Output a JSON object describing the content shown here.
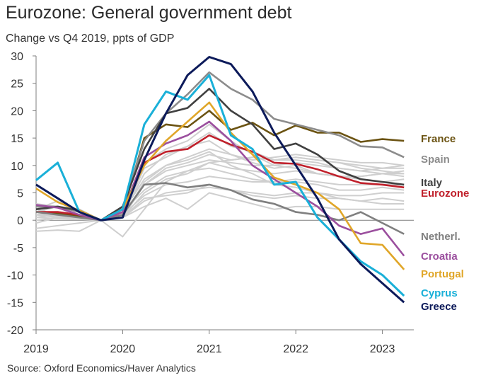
{
  "page": {
    "title": "Eurozone: General government debt",
    "subtitle": "Change vs Q4 2019, ppts of GDP",
    "source": "Source: Oxford Economics/Haver Analytics"
  },
  "chart_data": {
    "type": "line",
    "title": "Eurozone: General government debt",
    "subtitle": "Change vs Q4 2019, ppts of GDP",
    "xlabel": "",
    "ylabel": "",
    "x_ticks": [
      "2019",
      "2020",
      "2021",
      "2022",
      "2023"
    ],
    "y_ticks": [
      -20,
      -15,
      -10,
      -5,
      0,
      5,
      10,
      15,
      20,
      25,
      30
    ],
    "ylim": [
      -20,
      30
    ],
    "x_range": [
      "2019Q1",
      "2023Q2"
    ],
    "grid": false,
    "zero_line": true,
    "legend": "direct labels at right end of lines",
    "x": [
      "2019Q1",
      "2019Q2",
      "2019Q3",
      "2019Q4",
      "2020Q1",
      "2020Q2",
      "2020Q3",
      "2020Q4",
      "2021Q1",
      "2021Q2",
      "2021Q3",
      "2021Q4",
      "2022Q1",
      "2022Q2",
      "2022Q3",
      "2022Q4",
      "2023Q1",
      "2023Q2"
    ],
    "series": [
      {
        "name": "France",
        "color": "#6b5312",
        "values": [
          1.5,
          1.2,
          0.8,
          0,
          1.5,
          15.0,
          17.5,
          17.0,
          20.0,
          16.5,
          17.8,
          15.5,
          17.3,
          16.0,
          16.0,
          14.3,
          14.8,
          14.5
        ]
      },
      {
        "name": "Spain",
        "color": "#8c8c8c",
        "values": [
          2.5,
          2.5,
          1.5,
          0,
          2.0,
          14.5,
          19.5,
          23.0,
          27.0,
          24.0,
          22.0,
          18.5,
          17.5,
          16.5,
          15.5,
          13.5,
          13.3,
          11.5
        ]
      },
      {
        "name": "Italy",
        "color": "#404040",
        "values": [
          2.0,
          2.5,
          1.8,
          0,
          2.5,
          13.0,
          19.5,
          20.5,
          24.0,
          20.0,
          17.5,
          13.0,
          14.0,
          12.0,
          9.0,
          7.5,
          7.0,
          6.5
        ]
      },
      {
        "name": "Eurozone",
        "color": "#c0202b",
        "values": [
          1.5,
          1.5,
          1.0,
          0,
          1.0,
          10.5,
          12.5,
          13.0,
          15.5,
          13.8,
          12.5,
          10.5,
          10.3,
          9.3,
          8.0,
          6.8,
          6.5,
          6.0
        ]
      },
      {
        "name": "Netherl.",
        "color": "#7f7f7f",
        "values": [
          1.5,
          1.0,
          0.5,
          0,
          1.0,
          6.5,
          6.8,
          6.0,
          6.5,
          5.5,
          3.8,
          3.0,
          1.5,
          1.0,
          0.0,
          1.5,
          -0.5,
          -2.5
        ]
      },
      {
        "name": "Croatia",
        "color": "#9b4f9e",
        "values": [
          2.8,
          2.3,
          1.0,
          0,
          1.5,
          11.5,
          14.0,
          15.5,
          18.0,
          14.5,
          10.0,
          7.5,
          5.0,
          2.5,
          -1.0,
          -2.5,
          -1.5,
          -6.5
        ]
      },
      {
        "name": "Portugal",
        "color": "#e0a628",
        "values": [
          5.8,
          3.3,
          1.8,
          0,
          2.0,
          10.0,
          14.5,
          18.0,
          21.5,
          16.0,
          12.0,
          7.8,
          6.5,
          5.0,
          2.0,
          -4.2,
          -4.5,
          -9.0
        ]
      },
      {
        "name": "Cyprus",
        "color": "#1ab0d8",
        "values": [
          7.3,
          10.5,
          1.5,
          0,
          2.0,
          17.5,
          23.5,
          22.0,
          26.5,
          15.5,
          13.0,
          6.5,
          7.0,
          0.5,
          -3.5,
          -7.5,
          -10.0,
          -13.8
        ]
      },
      {
        "name": "Greece",
        "color": "#0c1a5a",
        "values": [
          6.5,
          4.0,
          1.5,
          0,
          0.5,
          11.0,
          19.5,
          26.5,
          29.8,
          28.5,
          23.5,
          16.0,
          10.0,
          4.0,
          -3.5,
          -8.0,
          -11.5,
          -15.0
        ]
      }
    ],
    "background_series": [
      {
        "values": [
          -2.0,
          -1.8,
          -2.0,
          0,
          -3.0,
          2.0,
          7.0,
          9.0,
          10.5,
          11.0,
          11.5,
          11.0,
          11.5,
          11.0,
          10.5,
          10.0,
          9.5,
          9.5
        ]
      },
      {
        "values": [
          1.0,
          0.8,
          0.5,
          0,
          0.5,
          6.5,
          9.0,
          10.0,
          11.0,
          10.5,
          10.0,
          10.0,
          10.5,
          10.0,
          9.5,
          9.0,
          9.5,
          10.0
        ]
      },
      {
        "values": [
          0.0,
          0.5,
          0.3,
          0,
          0.5,
          5.0,
          7.5,
          8.5,
          10.5,
          9.5,
          9.0,
          8.5,
          9.0,
          8.5,
          8.0,
          8.0,
          8.5,
          8.0
        ]
      },
      {
        "values": [
          -1.5,
          -1.0,
          -0.5,
          0,
          1.0,
          4.5,
          6.5,
          7.0,
          8.0,
          7.5,
          7.0,
          7.0,
          7.5,
          7.0,
          6.5,
          6.5,
          6.5,
          6.5
        ]
      },
      {
        "values": [
          1.0,
          0.5,
          0.3,
          0,
          0.5,
          3.5,
          5.0,
          5.5,
          6.0,
          5.5,
          5.0,
          4.5,
          5.0,
          5.0,
          4.5,
          4.5,
          5.0,
          5.0
        ]
      },
      {
        "values": [
          0.5,
          0.3,
          0.2,
          0,
          0.5,
          2.5,
          4.0,
          2.0,
          5.0,
          4.0,
          3.0,
          2.0,
          2.5,
          2.5,
          2.0,
          2.0,
          2.0,
          2.0
        ]
      },
      {
        "values": [
          2.0,
          1.0,
          0.5,
          0,
          0.5,
          7.0,
          10.0,
          11.5,
          13.0,
          12.0,
          11.0,
          11.5,
          12.0,
          11.5,
          11.0,
          10.5,
          10.5,
          10.0
        ]
      },
      {
        "values": [
          3.0,
          2.5,
          1.5,
          0,
          1.0,
          8.5,
          12.0,
          13.5,
          16.0,
          13.5,
          12.5,
          11.0,
          11.5,
          11.0,
          10.5,
          9.5,
          9.0,
          8.5
        ]
      },
      {
        "values": [
          -0.5,
          0.5,
          0.5,
          0,
          1.0,
          9.5,
          11.5,
          13.5,
          14.5,
          12.0,
          10.5,
          9.5,
          10.0,
          8.5,
          8.0,
          8.0,
          8.5,
          9.0
        ]
      },
      {
        "values": [
          1.5,
          2.5,
          2.0,
          0,
          2.0,
          10.5,
          13.0,
          14.5,
          17.5,
          14.5,
          12.0,
          10.0,
          9.5,
          8.5,
          8.0,
          7.5,
          7.0,
          7.5
        ]
      },
      {
        "values": [
          0.5,
          1.0,
          0.5,
          0,
          1.5,
          5.5,
          8.0,
          9.0,
          9.5,
          8.5,
          7.5,
          7.0,
          7.0,
          6.5,
          5.5,
          5.5,
          6.0,
          5.5
        ]
      },
      {
        "values": [
          1.0,
          1.5,
          1.0,
          0,
          0.5,
          4.0,
          4.5,
          5.0,
          6.5,
          5.5,
          4.5,
          4.0,
          4.5,
          4.0,
          4.0,
          3.5,
          4.0,
          3.5
        ]
      },
      {
        "values": [
          0.5,
          1.0,
          0.5,
          0,
          1.0,
          6.5,
          9.5,
          10.5,
          12.0,
          11.0,
          11.5,
          11.0,
          11.0,
          10.5,
          9.5,
          9.0,
          8.5,
          8.5
        ]
      },
      {
        "values": [
          2.0,
          3.5,
          1.5,
          0,
          1.5,
          7.5,
          10.0,
          11.0,
          12.5,
          10.0,
          8.5,
          6.5,
          6.0,
          5.0,
          4.0,
          3.5,
          3.0,
          3.0
        ]
      }
    ]
  }
}
